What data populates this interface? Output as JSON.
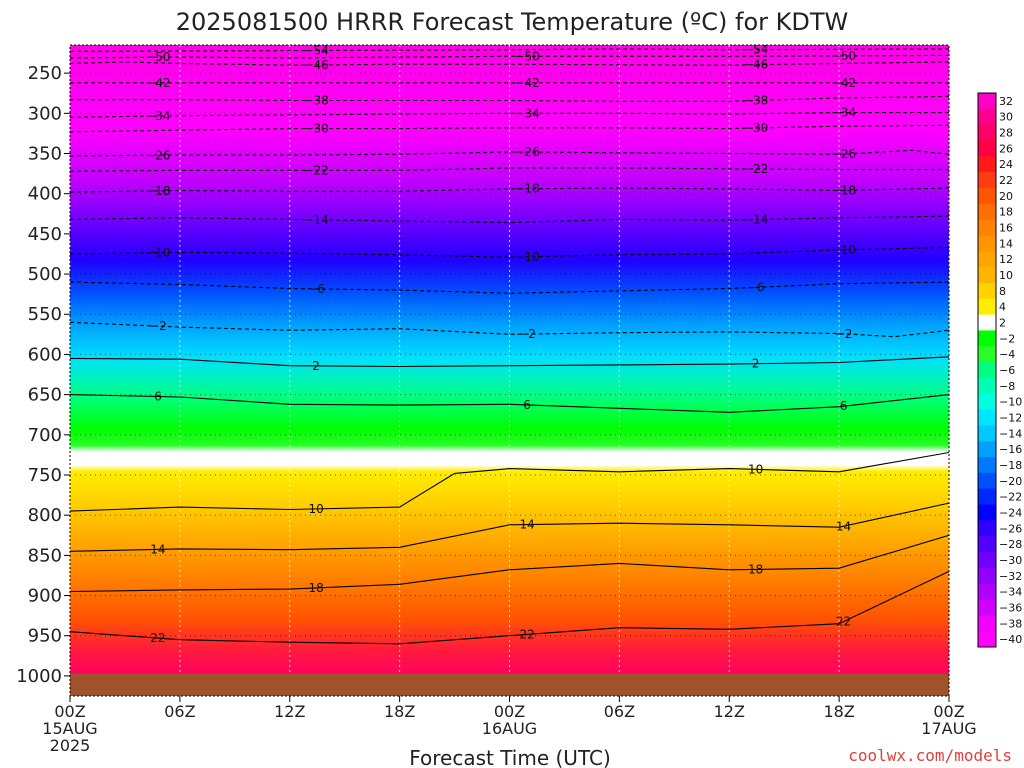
{
  "chart_data": {
    "type": "heatmap",
    "title": "2025081500 HRRR Forecast Temperature (ºC) for KDTW",
    "xlabel": "Forecast Time (UTC)",
    "ylabel": "",
    "credit": "coolwx.com/models",
    "y_axis": {
      "scale": "linear",
      "reversed": true,
      "range_hPa": [
        1025,
        215
      ],
      "ticks": [
        "250",
        "300",
        "350",
        "400",
        "450",
        "500",
        "550",
        "600",
        "650",
        "700",
        "750",
        "800",
        "850",
        "900",
        "950",
        "1000"
      ],
      "tick_values": [
        250,
        300,
        350,
        400,
        450,
        500,
        550,
        600,
        650,
        700,
        750,
        800,
        850,
        900,
        950,
        1000
      ]
    },
    "x_axis": {
      "range_hours": [
        0,
        48
      ],
      "ticks": [
        {
          "hour": 0,
          "lines": [
            "00Z",
            "15AUG",
            "2025"
          ]
        },
        {
          "hour": 6,
          "lines": [
            "06Z"
          ]
        },
        {
          "hour": 12,
          "lines": [
            "12Z"
          ]
        },
        {
          "hour": 18,
          "lines": [
            "18Z"
          ]
        },
        {
          "hour": 24,
          "lines": [
            "00Z",
            "16AUG"
          ]
        },
        {
          "hour": 30,
          "lines": [
            "06Z"
          ]
        },
        {
          "hour": 36,
          "lines": [
            "12Z"
          ]
        },
        {
          "hour": 42,
          "lines": [
            "18Z"
          ]
        },
        {
          "hour": 48,
          "lines": [
            "00Z",
            "17AUG"
          ]
        }
      ],
      "gridlines": "dotted vertical every 6 hours"
    },
    "colorbar": {
      "labels": [
        "32",
        "30",
        "28",
        "26",
        "24",
        "22",
        "20",
        "18",
        "16",
        "14",
        "12",
        "10",
        "8",
        "4",
        "2",
        "−2",
        "−4",
        "−6",
        "−8",
        "−10",
        "−12",
        "−14",
        "−16",
        "−18",
        "−20",
        "−22",
        "−24",
        "−26",
        "−28",
        "−30",
        "−32",
        "−34",
        "−36",
        "−38",
        "−40"
      ],
      "colors": [
        "#ff00c8",
        "#ff008c",
        "#ff0064",
        "#ff0046",
        "#ff1a1a",
        "#ff3c14",
        "#ff5500",
        "#ff6e00",
        "#ff8200",
        "#ff9600",
        "#ffa500",
        "#ffb400",
        "#ffd200",
        "#ffee00",
        "#ffffff",
        "#00ff00",
        "#28ff28",
        "#00ff80",
        "#00ffb4",
        "#00ffe0",
        "#00e6ff",
        "#00c8ff",
        "#00a0ff",
        "#0078ff",
        "#0050ff",
        "#0028ff",
        "#0000ff",
        "#3200ff",
        "#5000ff",
        "#7000ff",
        "#9000ff",
        "#b000ff",
        "#d000ff",
        "#f000ff",
        "#ff00ff"
      ]
    },
    "profile_columns": [
      {
        "hour": 0,
        "t": {
          "1000": 23,
          "950": 20,
          "900": 17,
          "850": 14,
          "800": 10,
          "750": 8,
          "700": 6,
          "650": 4,
          "600": 1,
          "550": -3,
          "500": -7,
          "450": -12,
          "400": -17,
          "350": -25,
          "300": -33,
          "250": -44,
          "220": -50
        }
      },
      {
        "hour": 12,
        "t": {
          "1000": 22,
          "950": 20,
          "900": 17,
          "850": 14,
          "800": 10,
          "750": 8,
          "700": 5,
          "650": 3,
          "600": 0,
          "550": -3,
          "500": -7,
          "450": -12,
          "400": -17,
          "350": -25,
          "300": -33,
          "250": -44,
          "220": -51
        }
      },
      {
        "hour": 24,
        "t": {
          "1000": 25,
          "950": 22,
          "900": 19,
          "850": 16,
          "800": 12,
          "750": 10,
          "700": 7,
          "650": 4,
          "600": 1,
          "550": -3,
          "500": -8,
          "450": -13,
          "400": -18,
          "350": -25,
          "300": -33,
          "250": -44,
          "220": -52
        }
      },
      {
        "hour": 36,
        "t": {
          "1000": 23,
          "950": 21,
          "900": 19,
          "850": 16,
          "800": 12,
          "750": 10,
          "700": 7,
          "650": 4,
          "600": 1,
          "550": -3,
          "500": -8,
          "450": -13,
          "400": -18,
          "350": -25,
          "300": -33,
          "250": -44,
          "220": -52
        }
      },
      {
        "hour": 48,
        "t": {
          "1000": 25,
          "950": 22,
          "900": 20,
          "850": 17,
          "800": 13,
          "750": 10,
          "700": 8,
          "650": 5,
          "600": 2,
          "550": -3,
          "500": -8,
          "450": -13,
          "400": -18,
          "350": -26,
          "300": -33,
          "250": -44,
          "220": -51
        }
      }
    ],
    "contours": [
      {
        "label": "−54",
        "style": "dashed",
        "points": [
          [
            0,
            223
          ],
          [
            12,
            222
          ],
          [
            24,
            221
          ],
          [
            30,
            220
          ],
          [
            36,
            221
          ],
          [
            48,
            220
          ]
        ]
      },
      {
        "label": "−50",
        "style": "dashed",
        "points": [
          [
            0,
            231
          ],
          [
            6,
            230
          ],
          [
            12,
            231
          ],
          [
            18,
            230
          ],
          [
            24,
            229
          ],
          [
            36,
            229
          ],
          [
            48,
            228
          ]
        ]
      },
      {
        "label": "−46",
        "style": "dashed",
        "points": [
          [
            0,
            238
          ],
          [
            3,
            236
          ],
          [
            6,
            238
          ],
          [
            12,
            240
          ],
          [
            18,
            239
          ],
          [
            24,
            239
          ],
          [
            36,
            240
          ],
          [
            42,
            238
          ],
          [
            48,
            236
          ]
        ]
      },
      {
        "label": "−42",
        "style": "dashed",
        "points": [
          [
            0,
            262
          ],
          [
            6,
            262
          ],
          [
            12,
            262
          ],
          [
            18,
            262
          ],
          [
            24,
            262
          ],
          [
            30,
            262
          ],
          [
            36,
            262
          ],
          [
            42,
            262
          ],
          [
            48,
            262
          ]
        ]
      },
      {
        "label": "−38",
        "style": "dashed",
        "points": [
          [
            0,
            283
          ],
          [
            6,
            283
          ],
          [
            12,
            284
          ],
          [
            18,
            284
          ],
          [
            24,
            284
          ],
          [
            30,
            285
          ],
          [
            36,
            285
          ],
          [
            42,
            281
          ],
          [
            48,
            279
          ]
        ]
      },
      {
        "label": "−34",
        "style": "dashed",
        "points": [
          [
            0,
            305
          ],
          [
            6,
            303
          ],
          [
            12,
            302
          ],
          [
            18,
            301
          ],
          [
            24,
            300
          ],
          [
            30,
            300
          ],
          [
            36,
            301
          ],
          [
            42,
            299
          ],
          [
            48,
            299
          ]
        ]
      },
      {
        "label": "−30",
        "style": "dashed",
        "points": [
          [
            0,
            323
          ],
          [
            6,
            321
          ],
          [
            12,
            319
          ],
          [
            18,
            319
          ],
          [
            24,
            318
          ],
          [
            30,
            318
          ],
          [
            36,
            319
          ],
          [
            42,
            316
          ],
          [
            48,
            315
          ]
        ]
      },
      {
        "label": "−26",
        "style": "dashed",
        "points": [
          [
            0,
            353
          ],
          [
            6,
            352
          ],
          [
            12,
            352
          ],
          [
            18,
            351
          ],
          [
            24,
            348
          ],
          [
            30,
            349
          ],
          [
            36,
            350
          ],
          [
            42,
            351
          ],
          [
            46,
            346
          ],
          [
            48,
            351
          ]
        ]
      },
      {
        "label": "−22",
        "style": "dashed",
        "points": [
          [
            0,
            372
          ],
          [
            6,
            371
          ],
          [
            12,
            371
          ],
          [
            18,
            371
          ],
          [
            24,
            368
          ],
          [
            30,
            368
          ],
          [
            36,
            369
          ],
          [
            42,
            370
          ],
          [
            48,
            370
          ]
        ]
      },
      {
        "label": "−18",
        "style": "dashed",
        "points": [
          [
            0,
            398
          ],
          [
            6,
            396
          ],
          [
            12,
            397
          ],
          [
            18,
            397
          ],
          [
            24,
            394
          ],
          [
            30,
            393
          ],
          [
            36,
            394
          ],
          [
            42,
            396
          ],
          [
            48,
            393
          ]
        ]
      },
      {
        "label": "−14",
        "style": "dashed",
        "points": [
          [
            0,
            432
          ],
          [
            6,
            430
          ],
          [
            12,
            432
          ],
          [
            18,
            434
          ],
          [
            24,
            436
          ],
          [
            30,
            432
          ],
          [
            36,
            433
          ],
          [
            42,
            430
          ],
          [
            48,
            428
          ]
        ]
      },
      {
        "label": "−10",
        "style": "dashed",
        "points": [
          [
            0,
            475
          ],
          [
            6,
            473
          ],
          [
            12,
            474
          ],
          [
            18,
            476
          ],
          [
            24,
            479
          ],
          [
            30,
            476
          ],
          [
            36,
            475
          ],
          [
            42,
            470
          ],
          [
            48,
            467
          ]
        ]
      },
      {
        "label": "−6",
        "style": "dashed",
        "points": [
          [
            0,
            510
          ],
          [
            6,
            513
          ],
          [
            12,
            518
          ],
          [
            18,
            520
          ],
          [
            24,
            524
          ],
          [
            30,
            521
          ],
          [
            36,
            518
          ],
          [
            42,
            512
          ],
          [
            48,
            510
          ]
        ]
      },
      {
        "label": "−2",
        "style": "dashed",
        "points": [
          [
            0,
            560
          ],
          [
            6,
            566
          ],
          [
            12,
            570
          ],
          [
            18,
            568
          ],
          [
            24,
            575
          ],
          [
            30,
            573
          ],
          [
            36,
            572
          ],
          [
            42,
            574
          ],
          [
            45,
            578
          ],
          [
            48,
            570
          ]
        ]
      },
      {
        "label": "2",
        "style": "solid",
        "points": [
          [
            0,
            605
          ],
          [
            6,
            606
          ],
          [
            12,
            614
          ],
          [
            18,
            615
          ],
          [
            24,
            614
          ],
          [
            30,
            613
          ],
          [
            36,
            612
          ],
          [
            42,
            610
          ],
          [
            48,
            603
          ]
        ]
      },
      {
        "label": "6",
        "style": "solid",
        "points": [
          [
            0,
            650
          ],
          [
            6,
            653
          ],
          [
            12,
            662
          ],
          [
            18,
            663
          ],
          [
            24,
            662
          ],
          [
            30,
            667
          ],
          [
            36,
            672
          ],
          [
            42,
            665
          ],
          [
            48,
            650
          ]
        ]
      },
      {
        "label": "10",
        "style": "solid",
        "points": [
          [
            0,
            795
          ],
          [
            6,
            790
          ],
          [
            12,
            793
          ],
          [
            18,
            790
          ],
          [
            21,
            748
          ],
          [
            24,
            742
          ],
          [
            30,
            746
          ],
          [
            36,
            742
          ],
          [
            42,
            746
          ],
          [
            48,
            722
          ]
        ]
      },
      {
        "label": "14",
        "style": "solid",
        "points": [
          [
            0,
            845
          ],
          [
            6,
            842
          ],
          [
            12,
            843
          ],
          [
            18,
            840
          ],
          [
            24,
            812
          ],
          [
            30,
            810
          ],
          [
            36,
            812
          ],
          [
            42,
            815
          ],
          [
            48,
            785
          ]
        ]
      },
      {
        "label": "18",
        "style": "solid",
        "points": [
          [
            0,
            895
          ],
          [
            6,
            893
          ],
          [
            12,
            892
          ],
          [
            18,
            886
          ],
          [
            24,
            868
          ],
          [
            30,
            860
          ],
          [
            36,
            868
          ],
          [
            42,
            866
          ],
          [
            48,
            825
          ]
        ]
      },
      {
        "label": "22",
        "style": "solid",
        "points": [
          [
            0,
            945
          ],
          [
            6,
            955
          ],
          [
            12,
            958
          ],
          [
            18,
            960
          ],
          [
            24,
            950
          ],
          [
            30,
            940
          ],
          [
            36,
            942
          ],
          [
            42,
            935
          ],
          [
            48,
            870
          ]
        ]
      }
    ]
  }
}
